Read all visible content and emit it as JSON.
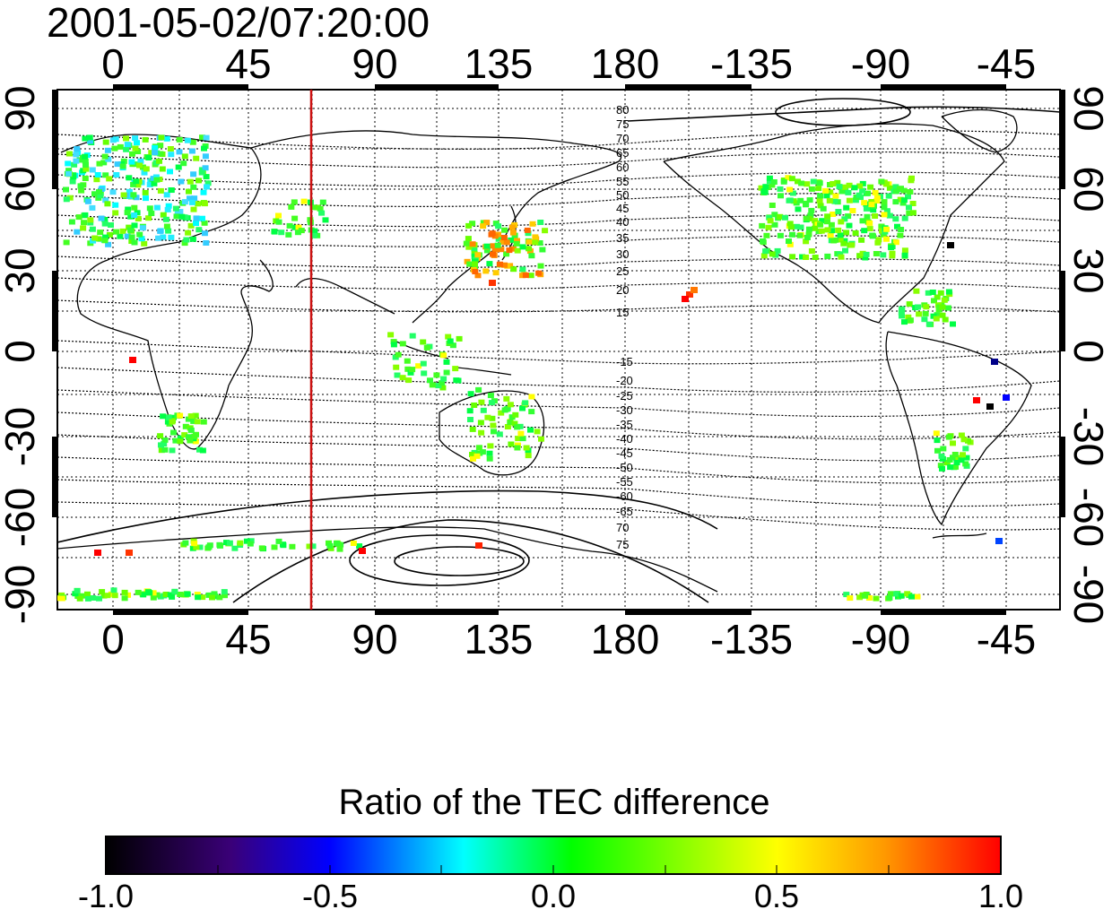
{
  "title": "2001-05-02/07:20:00",
  "map": {
    "x_ticks": [
      "0",
      "45",
      "90",
      "135",
      "180",
      "-135",
      "-90",
      "-45"
    ],
    "y_ticks": [
      "90",
      "60",
      "30",
      "0",
      "-30",
      "-60",
      "-90"
    ],
    "marker_longitude": 70,
    "marker_color": "#cc1111",
    "contour_labels_north": [
      "80",
      "75",
      "70",
      "65",
      "60",
      "55",
      "50",
      "45",
      "40",
      "35",
      "30",
      "25",
      "20",
      "15"
    ],
    "contour_labels_south": [
      "-15",
      "-20",
      "-25",
      "-30",
      "-35",
      "-40",
      "-45",
      "-50",
      "-55",
      "-60",
      "-65",
      "70",
      "75"
    ]
  },
  "colorbar": {
    "title": "Ratio of the TEC difference",
    "ticks": [
      "-1.0",
      "-0.5",
      "0.0",
      "0.5",
      "1.0"
    ],
    "range": [
      -1.0,
      1.0
    ],
    "colors": [
      "#000000",
      "#3a0078",
      "#0000ff",
      "#00ffff",
      "#00ff00",
      "#ffff00",
      "#ff9900",
      "#ff0000"
    ]
  }
}
